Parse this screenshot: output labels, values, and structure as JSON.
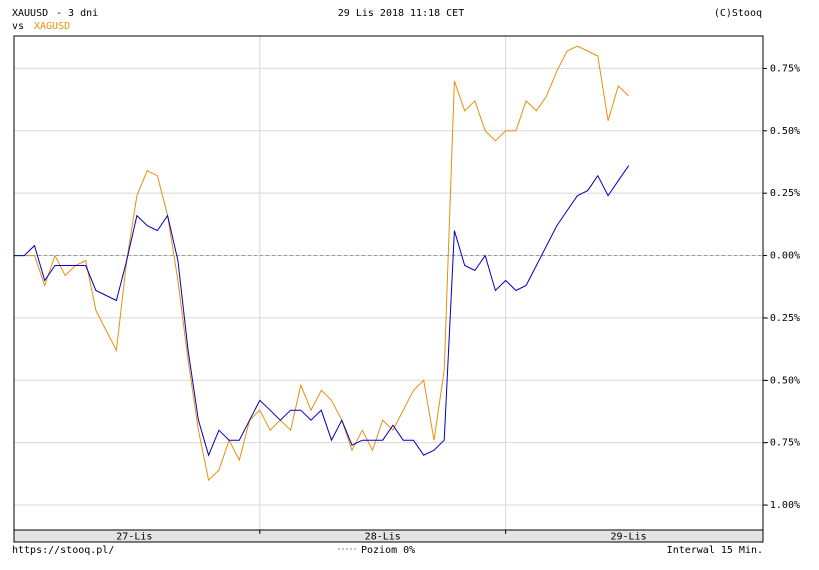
{
  "chart_data": {
    "type": "line",
    "date": "29 Lis 2018 11:18 CET",
    "copyright": "(C)Stooq",
    "period": "- 3 dni",
    "versus": "vs",
    "url": "https://stooq.pl/",
    "interval": "Interwal 15 Min.",
    "reference_line": {
      "name": "Poziom 0%",
      "value": 0
    },
    "x": [
      0,
      4,
      8,
      12,
      16,
      20,
      24,
      28,
      32,
      36,
      40,
      44,
      48,
      52,
      56,
      60,
      64,
      68,
      72,
      76,
      80,
      84,
      88,
      92,
      96,
      100,
      104,
      108,
      112,
      116,
      120,
      124,
      128,
      132,
      136,
      140,
      144,
      148,
      152,
      156,
      160,
      164,
      168,
      172,
      176,
      180,
      184,
      188,
      192,
      196,
      200,
      204,
      208,
      212,
      216,
      220,
      224,
      228,
      232,
      236,
      240
    ],
    "xlim": [
      0,
      292.5
    ],
    "xticks": [
      {
        "value": 47,
        "label": "27-Lis"
      },
      {
        "value": 144,
        "label": "28-Lis"
      },
      {
        "value": 240,
        "label": "29-Lis"
      }
    ],
    "xgrid": [
      96,
      192
    ],
    "ylim": [
      -1.1,
      0.88
    ],
    "yticks": [
      {
        "value": 0.75,
        "label": "0.75%"
      },
      {
        "value": 0.5,
        "label": "0.50%"
      },
      {
        "value": 0.25,
        "label": "0.25%"
      },
      {
        "value": 0,
        "label": "0.00%"
      },
      {
        "value": -0.25,
        "label": "-0.25%"
      },
      {
        "value": -0.5,
        "label": "-0.50%"
      },
      {
        "value": -0.75,
        "label": "-0.75%"
      },
      {
        "value": -1,
        "label": "-1.00%"
      }
    ],
    "grid": true,
    "series": [
      {
        "name": "XAUUSD",
        "color": "#0000c0",
        "values": [
          0,
          0,
          0.04,
          -0.1,
          -0.04,
          -0.04,
          -0.04,
          -0.04,
          -0.14,
          -0.16,
          -0.18,
          -0.02,
          0.16,
          0.12,
          0.1,
          0.16,
          -0.02,
          -0.38,
          -0.66,
          -0.8,
          -0.7,
          -0.74,
          -0.74,
          -0.66,
          -0.58,
          -0.62,
          -0.66,
          -0.62,
          -0.62,
          -0.66,
          -0.62,
          -0.74,
          -0.66,
          -0.76,
          -0.74,
          -0.74,
          -0.74,
          -0.68,
          -0.74,
          -0.74,
          -0.8,
          -0.78,
          -0.74,
          0.1,
          -0.04,
          -0.06,
          0,
          -0.14,
          -0.1,
          -0.14,
          -0.12,
          -0.04,
          0.04,
          0.12,
          0.18,
          0.24,
          0.26,
          0.32,
          0.24,
          0.3,
          0.36
        ]
      },
      {
        "name": "XAGUSD",
        "color": "#e8900c",
        "values": [
          0,
          0,
          0,
          -0.12,
          0,
          -0.08,
          -0.04,
          -0.02,
          -0.22,
          -0.3,
          -0.38,
          -0.02,
          0.24,
          0.34,
          0.32,
          0.16,
          -0.1,
          -0.42,
          -0.7,
          -0.9,
          -0.86,
          -0.74,
          -0.82,
          -0.66,
          -0.62,
          -0.7,
          -0.66,
          -0.7,
          -0.52,
          -0.62,
          -0.54,
          -0.58,
          -0.66,
          -0.78,
          -0.7,
          -0.78,
          -0.66,
          -0.7,
          -0.62,
          -0.54,
          -0.5,
          -0.74,
          -0.46,
          0.7,
          0.58,
          0.62,
          0.5,
          0.46,
          0.5,
          0.5,
          0.62,
          0.58,
          0.64,
          0.74,
          0.82,
          0.84,
          0.82,
          0.8,
          0.54,
          0.68,
          0.64
        ]
      }
    ]
  }
}
